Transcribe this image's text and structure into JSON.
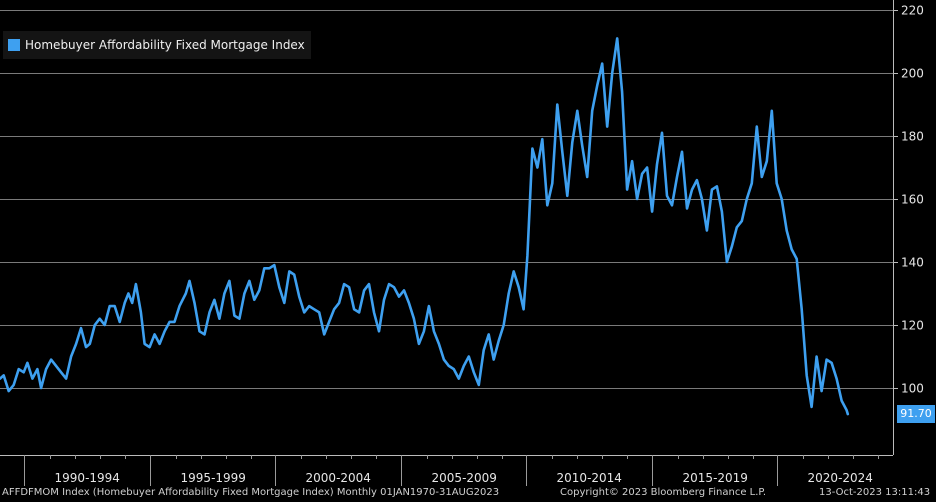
{
  "chart_data": {
    "type": "line",
    "title": "",
    "xlabel": "",
    "ylabel": "",
    "ylim": [
      88,
      222
    ],
    "xlim": [
      1990.0,
      2024.85
    ],
    "y_ticks": [
      100,
      120,
      140,
      160,
      180,
      200,
      220
    ],
    "x_category_labels": [
      "1990-1994",
      "1995-1999",
      "2000-2004",
      "2005-2009",
      "2010-2014",
      "2015-2019",
      "2020-2024"
    ],
    "grid": true,
    "legend_position": "top-left",
    "series": [
      {
        "name": "Homebuyer Affordability Fixed Mortgage Index",
        "color": "#3ea0f0",
        "last_value_label": "91.70",
        "points": [
          [
            1990.0,
            103
          ],
          [
            1990.15,
            104
          ],
          [
            1990.35,
            99
          ],
          [
            1990.55,
            101
          ],
          [
            1990.75,
            106
          ],
          [
            1990.95,
            105
          ],
          [
            1991.1,
            108
          ],
          [
            1991.3,
            103
          ],
          [
            1991.5,
            106
          ],
          [
            1991.65,
            100
          ],
          [
            1991.85,
            106
          ],
          [
            1992.05,
            109
          ],
          [
            1992.25,
            107
          ],
          [
            1992.45,
            105
          ],
          [
            1992.65,
            103
          ],
          [
            1992.85,
            110
          ],
          [
            1993.05,
            114
          ],
          [
            1993.25,
            119
          ],
          [
            1993.45,
            113
          ],
          [
            1993.6,
            114
          ],
          [
            1993.8,
            120
          ],
          [
            1994.0,
            122
          ],
          [
            1994.2,
            120
          ],
          [
            1994.4,
            126
          ],
          [
            1994.6,
            126
          ],
          [
            1994.8,
            121
          ],
          [
            1995.0,
            127
          ],
          [
            1995.15,
            130
          ],
          [
            1995.3,
            127
          ],
          [
            1995.45,
            133
          ],
          [
            1995.65,
            124
          ],
          [
            1995.8,
            114
          ],
          [
            1996.0,
            113
          ],
          [
            1996.2,
            117
          ],
          [
            1996.4,
            114
          ],
          [
            1996.6,
            118
          ],
          [
            1996.8,
            121
          ],
          [
            1997.0,
            121
          ],
          [
            1997.2,
            126
          ],
          [
            1997.45,
            130
          ],
          [
            1997.6,
            134
          ],
          [
            1997.8,
            127
          ],
          [
            1998.0,
            118
          ],
          [
            1998.2,
            117
          ],
          [
            1998.4,
            124
          ],
          [
            1998.6,
            128
          ],
          [
            1998.8,
            122
          ],
          [
            1999.0,
            130
          ],
          [
            1999.2,
            134
          ],
          [
            1999.4,
            123
          ],
          [
            1999.6,
            122
          ],
          [
            1999.8,
            130
          ],
          [
            2000.0,
            134
          ],
          [
            2000.2,
            128
          ],
          [
            2000.4,
            131
          ],
          [
            2000.6,
            138
          ],
          [
            2000.8,
            138
          ],
          [
            2001.0,
            139
          ],
          [
            2001.2,
            132
          ],
          [
            2001.4,
            127
          ],
          [
            2001.6,
            137
          ],
          [
            2001.8,
            136
          ],
          [
            2002.0,
            129
          ],
          [
            2002.2,
            124
          ],
          [
            2002.4,
            126
          ],
          [
            2002.6,
            125
          ],
          [
            2002.8,
            124
          ],
          [
            2003.0,
            117
          ],
          [
            2003.2,
            121
          ],
          [
            2003.4,
            125
          ],
          [
            2003.6,
            127
          ],
          [
            2003.8,
            133
          ],
          [
            2004.0,
            132
          ],
          [
            2004.2,
            125
          ],
          [
            2004.4,
            124
          ],
          [
            2004.6,
            131
          ],
          [
            2004.8,
            133
          ],
          [
            2005.0,
            124
          ],
          [
            2005.2,
            118
          ],
          [
            2005.4,
            128
          ],
          [
            2005.6,
            133
          ],
          [
            2005.8,
            132
          ],
          [
            2006.0,
            129
          ],
          [
            2006.2,
            131
          ],
          [
            2006.4,
            127
          ],
          [
            2006.6,
            122
          ],
          [
            2006.8,
            114
          ],
          [
            2007.0,
            118
          ],
          [
            2007.2,
            126
          ],
          [
            2007.4,
            118
          ],
          [
            2007.6,
            114
          ],
          [
            2007.8,
            109
          ],
          [
            2008.0,
            107
          ],
          [
            2008.2,
            106
          ],
          [
            2008.4,
            103
          ],
          [
            2008.6,
            107
          ],
          [
            2008.8,
            110
          ],
          [
            2009.0,
            105
          ],
          [
            2009.2,
            101
          ],
          [
            2009.4,
            112
          ],
          [
            2009.6,
            117
          ],
          [
            2009.8,
            109
          ],
          [
            2010.0,
            115
          ],
          [
            2010.2,
            120
          ],
          [
            2010.4,
            130
          ],
          [
            2010.6,
            137
          ],
          [
            2010.8,
            132
          ],
          [
            2011.0,
            125
          ],
          [
            2011.15,
            142
          ],
          [
            2011.35,
            176
          ],
          [
            2011.55,
            170
          ],
          [
            2011.75,
            179
          ],
          [
            2011.95,
            158
          ],
          [
            2012.15,
            165
          ],
          [
            2012.35,
            190
          ],
          [
            2012.55,
            175
          ],
          [
            2012.75,
            161
          ],
          [
            2012.95,
            178
          ],
          [
            2013.15,
            188
          ],
          [
            2013.35,
            177
          ],
          [
            2013.55,
            167
          ],
          [
            2013.75,
            188
          ],
          [
            2013.95,
            196
          ],
          [
            2014.15,
            203
          ],
          [
            2014.35,
            183
          ],
          [
            2014.55,
            200
          ],
          [
            2014.75,
            211
          ],
          [
            2014.95,
            194
          ],
          [
            2015.15,
            163
          ],
          [
            2015.35,
            172
          ],
          [
            2015.55,
            160
          ],
          [
            2015.75,
            168
          ],
          [
            2015.95,
            170
          ],
          [
            2016.15,
            156
          ],
          [
            2016.35,
            171
          ],
          [
            2016.55,
            181
          ],
          [
            2016.75,
            161
          ],
          [
            2016.95,
            158
          ],
          [
            2017.15,
            167
          ],
          [
            2017.35,
            175
          ],
          [
            2017.55,
            157
          ],
          [
            2017.75,
            163
          ],
          [
            2017.95,
            166
          ],
          [
            2018.15,
            160
          ],
          [
            2018.35,
            150
          ],
          [
            2018.55,
            163
          ],
          [
            2018.75,
            164
          ],
          [
            2018.95,
            156
          ],
          [
            2019.15,
            140
          ],
          [
            2019.35,
            145
          ],
          [
            2019.55,
            151
          ],
          [
            2019.75,
            153
          ],
          [
            2019.95,
            160
          ],
          [
            2020.15,
            165
          ],
          [
            2020.35,
            183
          ],
          [
            2020.55,
            167
          ],
          [
            2020.75,
            172
          ],
          [
            2020.95,
            188
          ],
          [
            2021.15,
            165
          ],
          [
            2021.35,
            160
          ],
          [
            2021.55,
            150
          ],
          [
            2021.75,
            144
          ],
          [
            2021.95,
            141
          ],
          [
            2022.15,
            125
          ],
          [
            2022.35,
            104
          ],
          [
            2022.55,
            94
          ],
          [
            2022.75,
            110
          ],
          [
            2022.95,
            99
          ],
          [
            2023.15,
            109
          ],
          [
            2023.35,
            108
          ],
          [
            2023.55,
            103
          ],
          [
            2023.75,
            96
          ],
          [
            2023.95,
            93
          ],
          [
            2024.0,
            91.7
          ]
        ]
      }
    ]
  },
  "footer": {
    "index_label": "AFFDFMOM Index (Homebuyer Affordability Fixed Mortgage Index)  Monthly 01JAN1970-31AUG2023",
    "copyright": "Copyright© 2023 Bloomberg Finance L.P.",
    "timestamp": "13-Oct-2023 13:11:43"
  }
}
